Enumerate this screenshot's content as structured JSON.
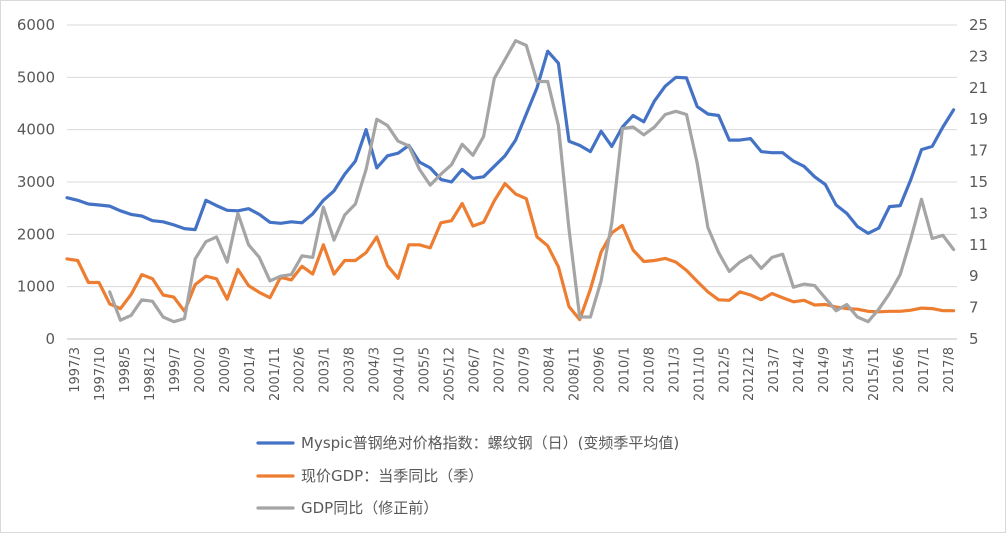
{
  "chart_data": {
    "type": "line",
    "title": "",
    "y_left": {
      "min": 0,
      "max": 6000,
      "ticks": [
        "0",
        "1000",
        "2000",
        "3000",
        "4000",
        "5000",
        "6000"
      ]
    },
    "y_right": {
      "min": 5,
      "max": 25,
      "ticks": [
        "5",
        "7",
        "9",
        "11",
        "13",
        "15",
        "17",
        "19",
        "21",
        "23",
        "25"
      ]
    },
    "x_tick_labels": [
      "1997/3",
      "1997/10",
      "1998/5",
      "1998/12",
      "1999/7",
      "2000/2",
      "2000/9",
      "2001/4",
      "2001/11",
      "2002/6",
      "2003/1",
      "2003/8",
      "2004/3",
      "2004/10",
      "2005/5",
      "2005/12",
      "2006/7",
      "2007/2",
      "2007/9",
      "2008/4",
      "2008/11",
      "2009/6",
      "2010/1",
      "2010/8",
      "2011/3",
      "2011/10",
      "2012/5",
      "2012/12",
      "2013/7",
      "2014/2",
      "2014/9",
      "2015/4",
      "2015/11",
      "2016/6",
      "2017/1",
      "2017/8"
    ],
    "legend_position": "bottom",
    "series": [
      {
        "name": "Myspic普钢绝对价格指数：螺纹钢（日）(变频季平均值)",
        "axis": "left",
        "color": "#4472C4",
        "values": [
          [
            1997.17,
            2700
          ],
          [
            1997.42,
            2650
          ],
          [
            1997.67,
            2580
          ],
          [
            1997.92,
            2560
          ],
          [
            1998.17,
            2540
          ],
          [
            1998.42,
            2450
          ],
          [
            1998.67,
            2380
          ],
          [
            1998.92,
            2350
          ],
          [
            1999.17,
            2260
          ],
          [
            1999.42,
            2240
          ],
          [
            1999.67,
            2180
          ],
          [
            1999.92,
            2110
          ],
          [
            2000.17,
            2090
          ],
          [
            2000.42,
            2650
          ],
          [
            2000.67,
            2550
          ],
          [
            2000.92,
            2460
          ],
          [
            2001.17,
            2450
          ],
          [
            2001.42,
            2490
          ],
          [
            2001.67,
            2380
          ],
          [
            2001.92,
            2230
          ],
          [
            2002.17,
            2210
          ],
          [
            2002.42,
            2240
          ],
          [
            2002.67,
            2220
          ],
          [
            2002.92,
            2390
          ],
          [
            2003.17,
            2650
          ],
          [
            2003.42,
            2830
          ],
          [
            2003.67,
            3150
          ],
          [
            2003.92,
            3400
          ],
          [
            2004.17,
            4000
          ],
          [
            2004.42,
            3270
          ],
          [
            2004.67,
            3500
          ],
          [
            2004.92,
            3550
          ],
          [
            2005.17,
            3700
          ],
          [
            2005.42,
            3380
          ],
          [
            2005.67,
            3270
          ],
          [
            2005.92,
            3050
          ],
          [
            2006.17,
            3000
          ],
          [
            2006.42,
            3240
          ],
          [
            2006.67,
            3070
          ],
          [
            2006.92,
            3100
          ],
          [
            2007.17,
            3300
          ],
          [
            2007.42,
            3500
          ],
          [
            2007.67,
            3800
          ],
          [
            2007.92,
            4300
          ],
          [
            2008.17,
            4800
          ],
          [
            2008.42,
            5500
          ],
          [
            2008.67,
            5270
          ],
          [
            2008.92,
            3780
          ],
          [
            2009.17,
            3700
          ],
          [
            2009.42,
            3580
          ],
          [
            2009.67,
            3970
          ],
          [
            2009.92,
            3680
          ],
          [
            2010.17,
            4050
          ],
          [
            2010.42,
            4270
          ],
          [
            2010.67,
            4150
          ],
          [
            2010.92,
            4550
          ],
          [
            2011.17,
            4830
          ],
          [
            2011.42,
            5000
          ],
          [
            2011.67,
            4990
          ],
          [
            2011.92,
            4440
          ],
          [
            2012.17,
            4300
          ],
          [
            2012.42,
            4270
          ],
          [
            2012.67,
            3800
          ],
          [
            2012.92,
            3800
          ],
          [
            2013.17,
            3830
          ],
          [
            2013.42,
            3580
          ],
          [
            2013.67,
            3560
          ],
          [
            2013.92,
            3560
          ],
          [
            2014.17,
            3400
          ],
          [
            2014.42,
            3300
          ],
          [
            2014.67,
            3100
          ],
          [
            2014.92,
            2950
          ],
          [
            2015.17,
            2560
          ],
          [
            2015.42,
            2400
          ],
          [
            2015.67,
            2150
          ],
          [
            2015.92,
            2020
          ],
          [
            2016.17,
            2120
          ],
          [
            2016.42,
            2530
          ],
          [
            2016.67,
            2550
          ],
          [
            2016.92,
            3050
          ],
          [
            2017.17,
            3620
          ],
          [
            2017.42,
            3680
          ],
          [
            2017.67,
            4050
          ],
          [
            2017.92,
            4380
          ]
        ]
      },
      {
        "name": "现价GDP：当季同比（季）",
        "axis": "left",
        "color": "#ED7D31",
        "values": [
          [
            1997.17,
            1530
          ],
          [
            1997.42,
            1500
          ],
          [
            1997.67,
            1080
          ],
          [
            1997.92,
            1080
          ],
          [
            1998.17,
            670
          ],
          [
            1998.42,
            580
          ],
          [
            1998.67,
            850
          ],
          [
            1998.92,
            1230
          ],
          [
            1999.17,
            1150
          ],
          [
            1999.42,
            840
          ],
          [
            1999.67,
            800
          ],
          [
            1999.92,
            530
          ],
          [
            2000.17,
            1040
          ],
          [
            2000.42,
            1200
          ],
          [
            2000.67,
            1150
          ],
          [
            2000.92,
            760
          ],
          [
            2001.17,
            1330
          ],
          [
            2001.42,
            1020
          ],
          [
            2001.67,
            890
          ],
          [
            2001.92,
            790
          ],
          [
            2002.17,
            1180
          ],
          [
            2002.42,
            1130
          ],
          [
            2002.67,
            1390
          ],
          [
            2002.92,
            1240
          ],
          [
            2003.17,
            1800
          ],
          [
            2003.42,
            1240
          ],
          [
            2003.67,
            1500
          ],
          [
            2003.92,
            1500
          ],
          [
            2004.17,
            1650
          ],
          [
            2004.42,
            1950
          ],
          [
            2004.67,
            1400
          ],
          [
            2004.92,
            1160
          ],
          [
            2005.17,
            1800
          ],
          [
            2005.42,
            1800
          ],
          [
            2005.67,
            1740
          ],
          [
            2005.92,
            2220
          ],
          [
            2006.17,
            2260
          ],
          [
            2006.42,
            2590
          ],
          [
            2006.67,
            2160
          ],
          [
            2006.92,
            2230
          ],
          [
            2007.17,
            2640
          ],
          [
            2007.42,
            2970
          ],
          [
            2007.67,
            2770
          ],
          [
            2007.92,
            2680
          ],
          [
            2008.17,
            1950
          ],
          [
            2008.42,
            1780
          ],
          [
            2008.67,
            1380
          ],
          [
            2008.92,
            620
          ],
          [
            2009.17,
            370
          ],
          [
            2009.42,
            950
          ],
          [
            2009.67,
            1660
          ],
          [
            2009.92,
            2030
          ],
          [
            2010.17,
            2170
          ],
          [
            2010.42,
            1700
          ],
          [
            2010.67,
            1480
          ],
          [
            2010.92,
            1500
          ],
          [
            2011.17,
            1540
          ],
          [
            2011.42,
            1470
          ],
          [
            2011.67,
            1310
          ],
          [
            2011.92,
            1100
          ],
          [
            2012.17,
            900
          ],
          [
            2012.42,
            750
          ],
          [
            2012.67,
            740
          ],
          [
            2012.92,
            900
          ],
          [
            2013.17,
            840
          ],
          [
            2013.42,
            750
          ],
          [
            2013.67,
            870
          ],
          [
            2013.92,
            790
          ],
          [
            2014.17,
            710
          ],
          [
            2014.42,
            740
          ],
          [
            2014.67,
            650
          ],
          [
            2014.92,
            660
          ],
          [
            2015.17,
            610
          ],
          [
            2015.42,
            580
          ],
          [
            2015.67,
            570
          ],
          [
            2015.92,
            530
          ],
          [
            2016.17,
            520
          ],
          [
            2016.42,
            530
          ],
          [
            2016.67,
            530
          ],
          [
            2016.92,
            550
          ],
          [
            2017.17,
            590
          ],
          [
            2017.42,
            580
          ],
          [
            2017.67,
            540
          ],
          [
            2017.92,
            540
          ]
        ]
      },
      {
        "name": "GDP同比（修正前）",
        "axis": "right",
        "color": "#A5A5A5",
        "values": [
          [
            1998.17,
            8.0
          ],
          [
            1998.42,
            6.2
          ],
          [
            1998.67,
            6.5
          ],
          [
            1998.92,
            7.5
          ],
          [
            1999.17,
            7.4
          ],
          [
            1999.42,
            6.4
          ],
          [
            1999.67,
            6.1
          ],
          [
            1999.92,
            6.3
          ],
          [
            2000.17,
            10.1
          ],
          [
            2000.42,
            11.2
          ],
          [
            2000.67,
            11.5
          ],
          [
            2000.92,
            9.9
          ],
          [
            2001.17,
            13.0
          ],
          [
            2001.42,
            11.0
          ],
          [
            2001.67,
            10.2
          ],
          [
            2001.92,
            8.7
          ],
          [
            2002.17,
            9.0
          ],
          [
            2002.42,
            9.1
          ],
          [
            2002.67,
            10.3
          ],
          [
            2002.92,
            10.2
          ],
          [
            2003.17,
            13.4
          ],
          [
            2003.42,
            11.3
          ],
          [
            2003.67,
            12.9
          ],
          [
            2003.92,
            13.6
          ],
          [
            2004.17,
            15.8
          ],
          [
            2004.42,
            19.0
          ],
          [
            2004.67,
            18.6
          ],
          [
            2004.92,
            17.6
          ],
          [
            2005.17,
            17.3
          ],
          [
            2005.42,
            15.8
          ],
          [
            2005.67,
            14.8
          ],
          [
            2005.92,
            15.5
          ],
          [
            2006.17,
            16.1
          ],
          [
            2006.42,
            17.4
          ],
          [
            2006.67,
            16.7
          ],
          [
            2006.92,
            17.9
          ],
          [
            2007.17,
            21.6
          ],
          [
            2007.42,
            22.8
          ],
          [
            2007.67,
            24.0
          ],
          [
            2007.92,
            23.7
          ],
          [
            2008.17,
            21.4
          ],
          [
            2008.42,
            21.4
          ],
          [
            2008.67,
            18.6
          ],
          [
            2008.92,
            12.0
          ],
          [
            2009.17,
            6.4
          ],
          [
            2009.42,
            6.4
          ],
          [
            2009.67,
            8.7
          ],
          [
            2009.92,
            12.4
          ],
          [
            2010.17,
            18.4
          ],
          [
            2010.42,
            18.5
          ],
          [
            2010.67,
            18.0
          ],
          [
            2010.92,
            18.5
          ],
          [
            2011.17,
            19.3
          ],
          [
            2011.42,
            19.5
          ],
          [
            2011.67,
            19.3
          ],
          [
            2011.92,
            16.2
          ],
          [
            2012.17,
            12.1
          ],
          [
            2012.42,
            10.5
          ],
          [
            2012.67,
            9.3
          ],
          [
            2012.92,
            9.9
          ],
          [
            2013.17,
            10.3
          ],
          [
            2013.42,
            9.5
          ],
          [
            2013.67,
            10.2
          ],
          [
            2013.92,
            10.4
          ],
          [
            2014.17,
            8.3
          ],
          [
            2014.42,
            8.5
          ],
          [
            2014.67,
            8.4
          ],
          [
            2014.92,
            7.6
          ],
          [
            2015.17,
            6.8
          ],
          [
            2015.42,
            7.2
          ],
          [
            2015.67,
            6.4
          ],
          [
            2015.92,
            6.1
          ],
          [
            2016.17,
            6.9
          ],
          [
            2016.42,
            7.9
          ],
          [
            2016.67,
            9.1
          ],
          [
            2016.92,
            11.4
          ],
          [
            2017.17,
            13.9
          ],
          [
            2017.42,
            11.4
          ],
          [
            2017.67,
            11.6
          ],
          [
            2017.92,
            10.7
          ]
        ]
      }
    ]
  }
}
